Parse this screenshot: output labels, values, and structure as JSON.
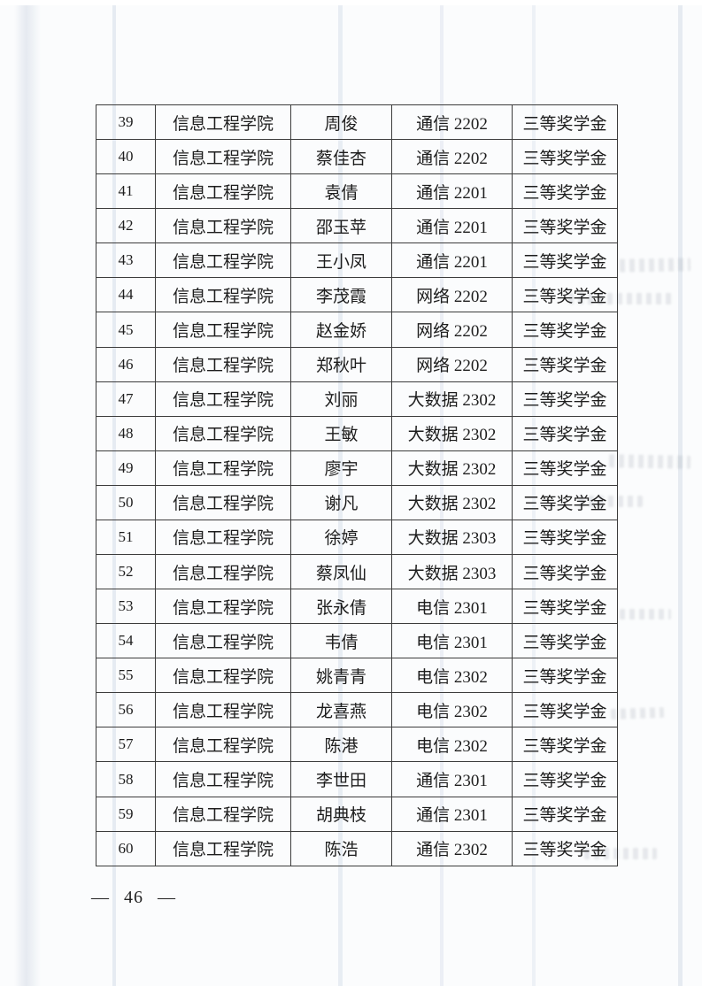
{
  "page": {
    "footer_page_number": "— 46 —"
  },
  "table": {
    "rows": [
      {
        "no": "39",
        "college": "信息工程学院",
        "name": "周俊",
        "class": "通信 2202",
        "award": "三等奖学金"
      },
      {
        "no": "40",
        "college": "信息工程学院",
        "name": "蔡佳杏",
        "class": "通信 2202",
        "award": "三等奖学金"
      },
      {
        "no": "41",
        "college": "信息工程学院",
        "name": "袁倩",
        "class": "通信 2201",
        "award": "三等奖学金"
      },
      {
        "no": "42",
        "college": "信息工程学院",
        "name": "邵玉苹",
        "class": "通信 2201",
        "award": "三等奖学金"
      },
      {
        "no": "43",
        "college": "信息工程学院",
        "name": "王小凤",
        "class": "通信 2201",
        "award": "三等奖学金"
      },
      {
        "no": "44",
        "college": "信息工程学院",
        "name": "李茂霞",
        "class": "网络 2202",
        "award": "三等奖学金"
      },
      {
        "no": "45",
        "college": "信息工程学院",
        "name": "赵金娇",
        "class": "网络 2202",
        "award": "三等奖学金"
      },
      {
        "no": "46",
        "college": "信息工程学院",
        "name": "郑秋叶",
        "class": "网络 2202",
        "award": "三等奖学金"
      },
      {
        "no": "47",
        "college": "信息工程学院",
        "name": "刘丽",
        "class": "大数据 2302",
        "award": "三等奖学金"
      },
      {
        "no": "48",
        "college": "信息工程学院",
        "name": "王敏",
        "class": "大数据 2302",
        "award": "三等奖学金"
      },
      {
        "no": "49",
        "college": "信息工程学院",
        "name": "廖宇",
        "class": "大数据 2302",
        "award": "三等奖学金"
      },
      {
        "no": "50",
        "college": "信息工程学院",
        "name": "谢凡",
        "class": "大数据 2302",
        "award": "三等奖学金"
      },
      {
        "no": "51",
        "college": "信息工程学院",
        "name": "徐婷",
        "class": "大数据 2303",
        "award": "三等奖学金"
      },
      {
        "no": "52",
        "college": "信息工程学院",
        "name": "蔡凤仙",
        "class": "大数据 2303",
        "award": "三等奖学金"
      },
      {
        "no": "53",
        "college": "信息工程学院",
        "name": "张永倩",
        "class": "电信 2301",
        "award": "三等奖学金"
      },
      {
        "no": "54",
        "college": "信息工程学院",
        "name": "韦倩",
        "class": "电信 2301",
        "award": "三等奖学金"
      },
      {
        "no": "55",
        "college": "信息工程学院",
        "name": "姚青青",
        "class": "电信 2302",
        "award": "三等奖学金"
      },
      {
        "no": "56",
        "college": "信息工程学院",
        "name": "龙喜燕",
        "class": "电信 2302",
        "award": "三等奖学金"
      },
      {
        "no": "57",
        "college": "信息工程学院",
        "name": "陈港",
        "class": "电信 2302",
        "award": "三等奖学金"
      },
      {
        "no": "58",
        "college": "信息工程学院",
        "name": "李世田",
        "class": "通信 2301",
        "award": "三等奖学金"
      },
      {
        "no": "59",
        "college": "信息工程学院",
        "name": "胡典枝",
        "class": "通信 2301",
        "award": "三等奖学金"
      },
      {
        "no": "60",
        "college": "信息工程学院",
        "name": "陈浩",
        "class": "通信 2302",
        "award": "三等奖学金"
      }
    ]
  }
}
